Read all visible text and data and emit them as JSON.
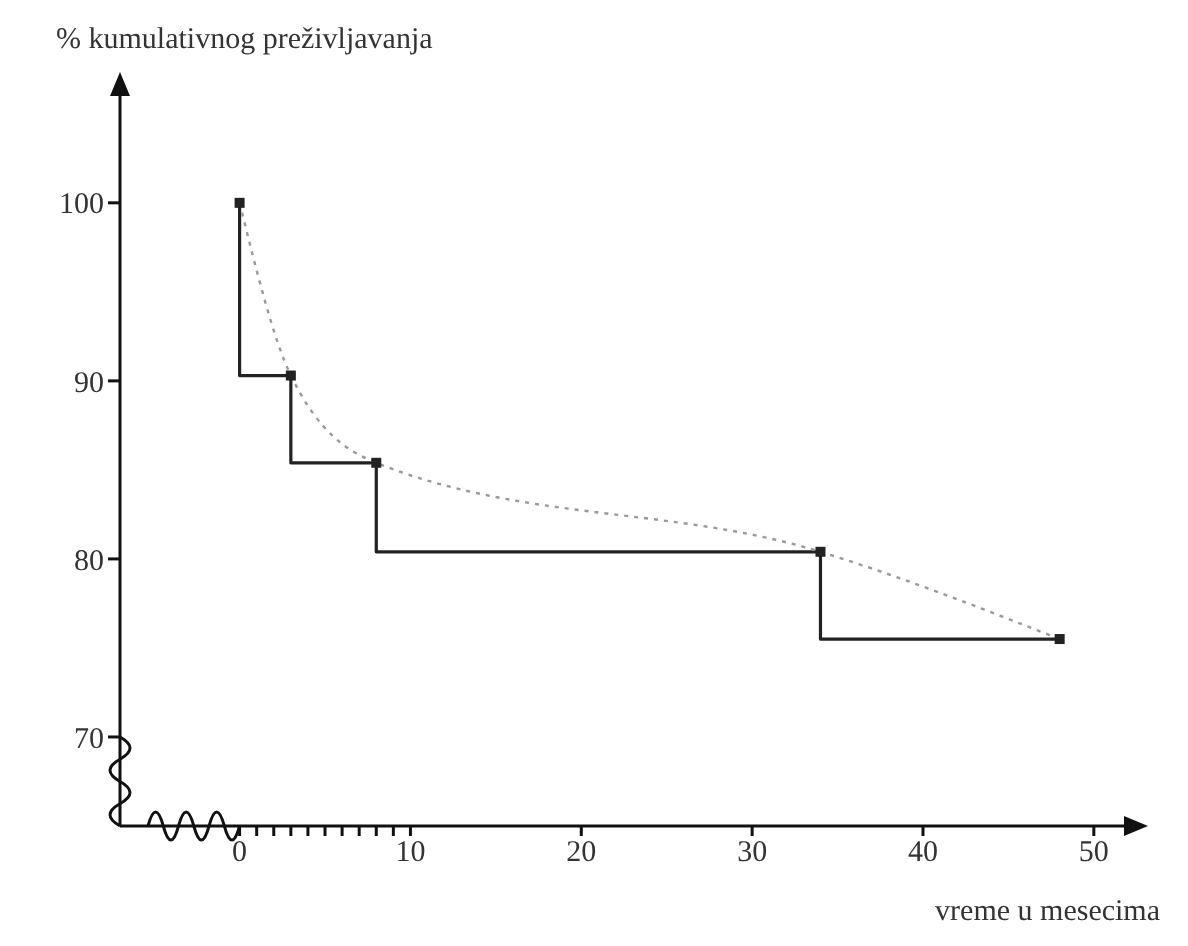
{
  "chart_data": {
    "type": "step",
    "ylabel": "% kumulativnog preživljavanja",
    "xlabel": "vreme u mesecima",
    "xlim": [
      -7,
      52
    ],
    "ylim": [
      65,
      106
    ],
    "xticks": [
      0,
      {
        "value": 1,
        "label": null
      },
      {
        "value": 2,
        "label": null
      },
      {
        "value": 3,
        "label": null
      },
      {
        "value": 4,
        "label": null
      },
      {
        "value": 5,
        "label": null
      },
      {
        "value": 6,
        "label": null
      },
      {
        "value": 7,
        "label": null
      },
      {
        "value": 8,
        "label": null
      },
      {
        "value": 9,
        "label": null
      },
      10,
      20,
      30,
      40,
      50
    ],
    "yticks": [
      70,
      80,
      90,
      100
    ],
    "grid": false,
    "legend": false,
    "series": [
      {
        "color": "#222222",
        "x": [
          0,
          3,
          8,
          34,
          48
        ],
        "values": [
          100,
          90.3,
          85.4,
          80.4,
          75.5
        ],
        "marker": "square",
        "line_style": "solid"
      },
      {
        "type": "line",
        "color": "#999999",
        "x": [
          0,
          3,
          8,
          34,
          48
        ],
        "values": [
          100,
          90.3,
          85.4,
          80.4,
          75.5
        ],
        "marker": "none",
        "line_style": "dotted"
      }
    ]
  }
}
